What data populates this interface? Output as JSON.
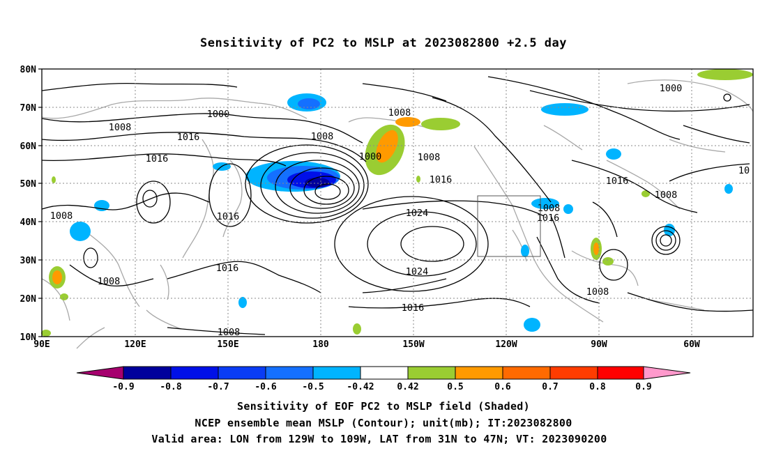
{
  "title": "Sensitivity of PC2 to MSLP at 2023082800 +2.5 day",
  "map": {
    "lat_labels": [
      "80N",
      "70N",
      "60N",
      "50N",
      "40N",
      "30N",
      "20N",
      "10N"
    ],
    "lon_labels": [
      "90E",
      "120E",
      "150E",
      "180",
      "150W",
      "120W",
      "90W",
      "60W"
    ],
    "lat_range": [
      10,
      80
    ],
    "lon_range": [
      "90E",
      "45W"
    ],
    "grid": "dotted every 10 degrees",
    "contour_labels": [
      "1000",
      "1008",
      "1016",
      "1016",
      "1008",
      "1008",
      "1000",
      "1008",
      "1016",
      "1024",
      "1008",
      "1016",
      "1024",
      "1016",
      "1016",
      "1008",
      "1008",
      "1008",
      "1016",
      "1008",
      "1008",
      "1000",
      "1016",
      "1024",
      "1016",
      "1008",
      "1000",
      "1016",
      "1008",
      "10"
    ],
    "valid_area_box": {
      "lon": [
        "129W",
        "109W"
      ],
      "lat": [
        "31N",
        "47N"
      ]
    }
  },
  "colorbar": {
    "tick_labels": [
      "-0.9",
      "-0.8",
      "-0.7",
      "-0.6",
      "-0.5",
      "-0.42",
      "0.42",
      "0.5",
      "0.6",
      "0.7",
      "0.8",
      "0.9"
    ],
    "colors": [
      "#a6006e",
      "#00009c",
      "#0010e8",
      "#0a3cf5",
      "#1470ff",
      "#00b4ff",
      "#ffffff",
      "#9acd32",
      "#ff9a00",
      "#ff6a00",
      "#ff3c00",
      "#ff0000",
      "#ff99cc"
    ]
  },
  "captions": {
    "line1": "Sensitivity of EOF PC2 to MSLP field (Shaded)",
    "line2": "NCEP ensemble mean MSLP (Contour); unit(mb); IT:2023082800",
    "line3": "Valid area: LON from 129W to 109W, LAT from 31N to 47N; VT: 2023090200"
  }
}
